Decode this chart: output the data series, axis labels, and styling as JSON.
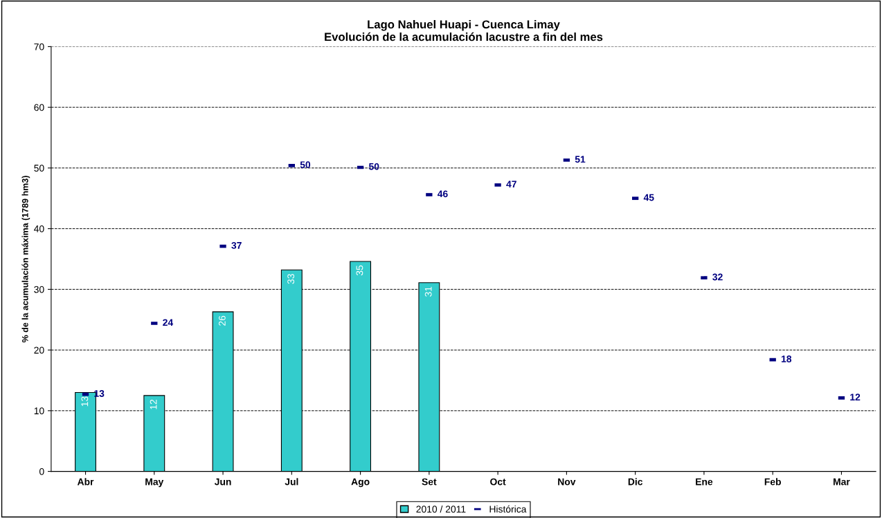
{
  "chart_data": {
    "type": "bar",
    "title": "Lago Nahuel Huapi - Cuenca Limay\nEvolución de la acumulación lacustre a fin del mes",
    "ylabel": "% de la acumulación máxima (1789 hm3)",
    "categories": [
      "Abr",
      "May",
      "Jun",
      "Jul",
      "Ago",
      "Set",
      "Oct",
      "Nov",
      "Dic",
      "Ene",
      "Feb",
      "Mar"
    ],
    "series": [
      {
        "name": "2010 / 2011",
        "color": "#33cccc",
        "values": [
          13.0,
          12.5,
          26.3,
          33.2,
          34.6,
          31.1,
          null,
          null,
          null,
          null,
          null,
          null
        ],
        "value_labels": [
          "13",
          "12",
          "26",
          "33",
          "35",
          "31",
          null,
          null,
          null,
          null,
          null,
          null
        ]
      },
      {
        "name": "Histórica",
        "type": "scatter",
        "color": "#000080",
        "values": [
          12.7,
          24.4,
          37.1,
          50.4,
          50.1,
          45.6,
          47.2,
          51.3,
          45.0,
          31.9,
          18.4,
          12.1
        ],
        "value_labels": [
          "13",
          "24",
          "37",
          "50",
          "50",
          "46",
          "47",
          "51",
          "45",
          "32",
          "18",
          "12"
        ]
      }
    ],
    "ylim": [
      0,
      70
    ],
    "yticks": [
      0,
      10,
      20,
      30,
      40,
      50,
      60,
      70
    ],
    "grid": "y",
    "legend": "bottom"
  }
}
